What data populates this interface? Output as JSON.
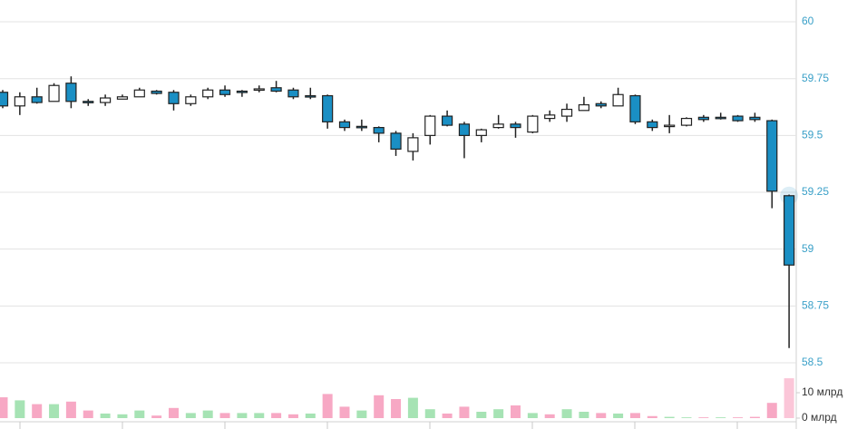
{
  "chart_data": [
    {
      "type": "candlestick",
      "open": [
        59.69,
        59.63,
        59.67,
        59.65,
        59.73,
        59.65,
        59.645,
        59.66,
        59.67,
        59.695,
        59.69,
        59.64,
        59.67,
        59.7,
        59.695,
        59.7,
        59.71,
        59.7,
        59.675,
        59.675,
        59.56,
        59.54,
        59.535,
        59.51,
        59.43,
        59.5,
        59.585,
        59.55,
        59.5,
        59.535,
        59.55,
        59.515,
        59.575,
        59.585,
        59.61,
        59.64,
        59.63,
        59.675,
        59.56,
        59.54,
        59.545,
        59.58,
        59.58,
        59.585,
        59.58,
        59.565,
        59.235
      ],
      "high": [
        59.7,
        59.69,
        59.71,
        59.73,
        59.76,
        59.66,
        59.68,
        59.68,
        59.71,
        59.7,
        59.7,
        59.68,
        59.71,
        59.72,
        59.7,
        59.72,
        59.74,
        59.71,
        59.71,
        59.68,
        59.57,
        59.57,
        59.54,
        59.52,
        59.51,
        59.59,
        59.61,
        59.56,
        59.53,
        59.59,
        59.56,
        59.59,
        59.61,
        59.64,
        59.67,
        59.65,
        59.71,
        59.68,
        59.57,
        59.59,
        59.58,
        59.59,
        59.6,
        59.59,
        59.6,
        59.57,
        59.24
      ],
      "low": [
        59.62,
        59.59,
        59.64,
        59.65,
        59.62,
        59.63,
        59.63,
        59.66,
        59.67,
        59.68,
        59.61,
        59.63,
        59.66,
        59.67,
        59.67,
        59.69,
        59.69,
        59.66,
        59.66,
        59.53,
        59.52,
        59.52,
        59.47,
        59.41,
        59.39,
        59.46,
        59.54,
        59.4,
        59.47,
        59.53,
        59.49,
        59.51,
        59.56,
        59.56,
        59.61,
        59.62,
        59.63,
        59.55,
        59.52,
        59.51,
        59.54,
        59.56,
        59.57,
        59.56,
        59.56,
        59.18,
        58.565
      ],
      "close": [
        59.63,
        59.67,
        59.645,
        59.72,
        59.65,
        59.645,
        59.665,
        59.67,
        59.7,
        59.685,
        59.64,
        59.67,
        59.7,
        59.68,
        59.69,
        59.705,
        59.695,
        59.67,
        59.67,
        59.56,
        59.535,
        59.535,
        59.51,
        59.44,
        59.49,
        59.585,
        59.545,
        59.5,
        59.525,
        59.55,
        59.535,
        59.585,
        59.59,
        59.615,
        59.635,
        59.63,
        59.68,
        59.56,
        59.535,
        59.545,
        59.575,
        59.57,
        59.575,
        59.565,
        59.57,
        59.255,
        58.93
      ],
      "up_color": "#ffffff",
      "down_color": "#1a8fc4",
      "ylim": [
        58.5,
        60.096
      ],
      "yticks": [
        60,
        59.75,
        59.5,
        59.25,
        59,
        58.75,
        58.5
      ],
      "grid": true
    },
    {
      "type": "volume",
      "values": [
        8.2,
        7.0,
        5.5,
        5.5,
        6.5,
        3,
        1.8,
        1.5,
        3,
        1,
        4,
        2,
        3,
        2,
        2,
        2,
        2,
        1.5,
        1.8,
        9.5,
        4.5,
        3,
        9,
        7.5,
        8,
        3.5,
        1.8,
        4.5,
        2.5,
        3.5,
        5,
        2,
        1.5,
        3.5,
        2.5,
        2,
        1.8,
        2,
        0.8,
        0.5,
        0.3,
        0.3,
        0.3,
        0.3,
        0.5,
        6,
        15.7
      ],
      "colors": [
        "#f7a8c4",
        "#a6e3b4",
        "#f7a8c4",
        "#a6e3b4",
        "#f7a8c4",
        "#f7a8c4",
        "#a6e3b4",
        "#a6e3b4",
        "#a6e3b4",
        "#f7a8c4",
        "#f7a8c4",
        "#a6e3b4",
        "#a6e3b4",
        "#f7a8c4",
        "#a6e3b4",
        "#a6e3b4",
        "#f7a8c4",
        "#f7a8c4",
        "#a6e3b4",
        "#f7a8c4",
        "#f7a8c4",
        "#a6e3b4",
        "#f7a8c4",
        "#f7a8c4",
        "#a6e3b4",
        "#a6e3b4",
        "#f7a8c4",
        "#f7a8c4",
        "#a6e3b4",
        "#a6e3b4",
        "#f7a8c4",
        "#a6e3b4",
        "#f7a8c4",
        "#a6e3b4",
        "#a6e3b4",
        "#f7a8c4",
        "#a6e3b4",
        "#f7a8c4",
        "#f7a8c4",
        "#a6e3b4",
        "#a6e3b4",
        "#f7a8c4",
        "#a6e3b4",
        "#f7a8c4",
        "#f7a8c4",
        "#f7a8c4",
        "#fbc6d8"
      ],
      "ylim": [
        0,
        20
      ],
      "yticks": [
        {
          "value": 10,
          "label": "10 млрд"
        },
        {
          "value": 0,
          "label": "0 млрд"
        }
      ]
    }
  ]
}
